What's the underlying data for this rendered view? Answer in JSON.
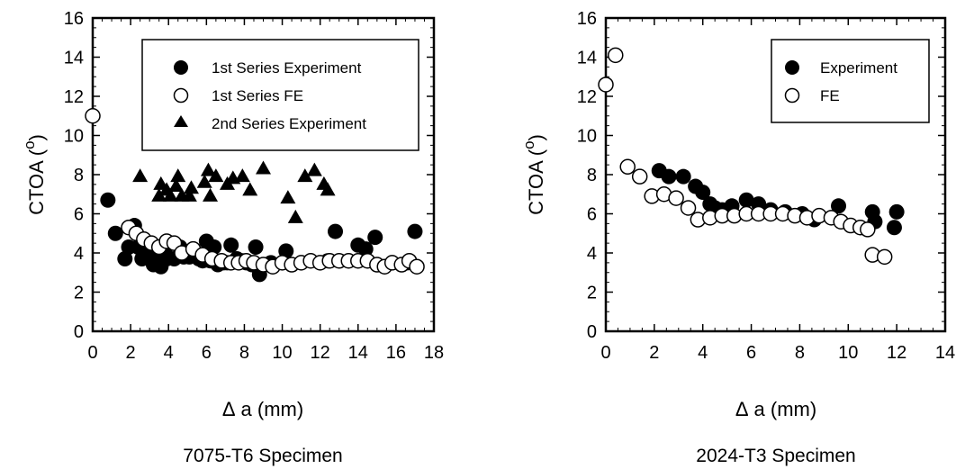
{
  "chart_data": [
    {
      "type": "scatter",
      "caption": "7075-T6 Specimen",
      "xlabel_symbol": "Δ",
      "xlabel": "a (mm)",
      "ylabel": "CTOA (",
      "ylabel_unit": "o",
      "ylabel_close": ")",
      "xlim": [
        0,
        18
      ],
      "ylim": [
        0,
        16
      ],
      "xticks": [
        0,
        2,
        4,
        6,
        8,
        10,
        12,
        14,
        16,
        18
      ],
      "yticks": [
        0,
        2,
        4,
        6,
        8,
        10,
        12,
        14,
        16
      ],
      "legend_position": "top-right",
      "series": [
        {
          "name": "1st Series Experiment",
          "marker": "filled-circle",
          "points": [
            [
              0.8,
              6.7
            ],
            [
              1.2,
              5.0
            ],
            [
              1.7,
              3.7
            ],
            [
              1.9,
              4.3
            ],
            [
              2.2,
              5.4
            ],
            [
              2.4,
              4.3
            ],
            [
              2.6,
              3.7
            ],
            [
              2.9,
              3.9
            ],
            [
              3.1,
              4.2
            ],
            [
              3.2,
              3.4
            ],
            [
              3.4,
              3.6
            ],
            [
              3.6,
              3.3
            ],
            [
              3.8,
              4.1
            ],
            [
              3.9,
              3.7
            ],
            [
              4.1,
              4.5
            ],
            [
              4.3,
              3.7
            ],
            [
              4.6,
              4.3
            ],
            [
              4.8,
              3.8
            ],
            [
              5.1,
              3.8
            ],
            [
              5.3,
              4.0
            ],
            [
              5.6,
              3.7
            ],
            [
              5.8,
              3.6
            ],
            [
              6.0,
              4.6
            ],
            [
              6.2,
              3.6
            ],
            [
              6.4,
              4.3
            ],
            [
              6.6,
              3.4
            ],
            [
              6.9,
              3.5
            ],
            [
              7.1,
              3.5
            ],
            [
              7.3,
              4.4
            ],
            [
              7.6,
              3.7
            ],
            [
              7.9,
              3.6
            ],
            [
              8.1,
              3.5
            ],
            [
              8.4,
              3.4
            ],
            [
              8.6,
              4.3
            ],
            [
              8.8,
              2.9
            ],
            [
              9.0,
              3.4
            ],
            [
              9.4,
              3.5
            ],
            [
              10.2,
              4.1
            ],
            [
              12.4,
              3.6
            ],
            [
              12.8,
              5.1
            ],
            [
              14.0,
              4.4
            ],
            [
              14.4,
              4.2
            ],
            [
              14.9,
              4.8
            ],
            [
              15.8,
              3.5
            ],
            [
              16.6,
              3.5
            ],
            [
              17.0,
              5.1
            ]
          ]
        },
        {
          "name": "1st Series FE",
          "marker": "open-circle",
          "points": [
            [
              0.0,
              11.0
            ],
            [
              1.9,
              5.3
            ],
            [
              2.3,
              5.0
            ],
            [
              2.7,
              4.7
            ],
            [
              3.1,
              4.5
            ],
            [
              3.5,
              4.3
            ],
            [
              3.9,
              4.6
            ],
            [
              4.3,
              4.5
            ],
            [
              4.7,
              4.0
            ],
            [
              5.3,
              4.2
            ],
            [
              5.8,
              3.9
            ],
            [
              6.3,
              3.7
            ],
            [
              6.8,
              3.6
            ],
            [
              7.3,
              3.5
            ],
            [
              7.7,
              3.5
            ],
            [
              8.1,
              3.6
            ],
            [
              8.5,
              3.5
            ],
            [
              9.0,
              3.4
            ],
            [
              9.5,
              3.3
            ],
            [
              10.0,
              3.5
            ],
            [
              10.5,
              3.4
            ],
            [
              11.0,
              3.5
            ],
            [
              11.5,
              3.6
            ],
            [
              12.0,
              3.5
            ],
            [
              12.5,
              3.6
            ],
            [
              13.0,
              3.6
            ],
            [
              13.5,
              3.6
            ],
            [
              14.0,
              3.6
            ],
            [
              14.5,
              3.6
            ],
            [
              15.0,
              3.4
            ],
            [
              15.4,
              3.3
            ],
            [
              15.8,
              3.5
            ],
            [
              16.3,
              3.4
            ],
            [
              16.7,
              3.6
            ],
            [
              17.1,
              3.3
            ]
          ]
        },
        {
          "name": "2nd Series Experiment",
          "marker": "filled-triangle",
          "points": [
            [
              2.5,
              7.9
            ],
            [
              3.5,
              6.9
            ],
            [
              3.6,
              7.5
            ],
            [
              3.9,
              7.2
            ],
            [
              4.1,
              6.9
            ],
            [
              4.4,
              7.4
            ],
            [
              4.5,
              7.9
            ],
            [
              4.7,
              6.9
            ],
            [
              5.1,
              6.9
            ],
            [
              5.2,
              7.3
            ],
            [
              5.9,
              7.6
            ],
            [
              6.1,
              8.2
            ],
            [
              6.2,
              6.9
            ],
            [
              6.5,
              7.9
            ],
            [
              7.1,
              7.5
            ],
            [
              7.4,
              7.8
            ],
            [
              7.9,
              7.9
            ],
            [
              8.3,
              7.2
            ],
            [
              9.0,
              8.3
            ],
            [
              10.3,
              6.8
            ],
            [
              10.7,
              5.8
            ],
            [
              11.2,
              7.9
            ],
            [
              11.7,
              8.2
            ],
            [
              12.2,
              7.5
            ],
            [
              12.4,
              7.2
            ]
          ]
        }
      ]
    },
    {
      "type": "scatter",
      "caption": "2024-T3 Specimen",
      "xlabel_symbol": "Δ",
      "xlabel": "a (mm)",
      "ylabel": "CTOA (",
      "ylabel_unit": "o",
      "ylabel_close": ")",
      "xlim": [
        0,
        14
      ],
      "ylim": [
        0,
        16
      ],
      "xticks": [
        0,
        2,
        4,
        6,
        8,
        10,
        12,
        14
      ],
      "yticks": [
        0,
        2,
        4,
        6,
        8,
        10,
        12,
        14,
        16
      ],
      "legend_position": "top-right",
      "series": [
        {
          "name": "Experiment",
          "marker": "filled-circle",
          "points": [
            [
              2.2,
              8.2
            ],
            [
              2.6,
              7.9
            ],
            [
              3.2,
              7.9
            ],
            [
              3.7,
              7.4
            ],
            [
              4.0,
              7.1
            ],
            [
              4.3,
              6.5
            ],
            [
              4.5,
              6.3
            ],
            [
              4.8,
              6.2
            ],
            [
              5.2,
              6.4
            ],
            [
              5.8,
              6.7
            ],
            [
              6.3,
              6.5
            ],
            [
              6.8,
              6.2
            ],
            [
              7.4,
              6.1
            ],
            [
              8.1,
              6.0
            ],
            [
              8.6,
              5.7
            ],
            [
              9.6,
              6.4
            ],
            [
              11.0,
              6.1
            ],
            [
              11.1,
              5.6
            ],
            [
              11.9,
              5.3
            ],
            [
              12.0,
              6.1
            ]
          ]
        },
        {
          "name": "FE",
          "marker": "open-circle",
          "points": [
            [
              0.0,
              12.6
            ],
            [
              0.4,
              14.1
            ],
            [
              0.9,
              8.4
            ],
            [
              1.4,
              7.9
            ],
            [
              1.9,
              6.9
            ],
            [
              2.4,
              7.0
            ],
            [
              2.9,
              6.8
            ],
            [
              3.4,
              6.3
            ],
            [
              3.8,
              5.7
            ],
            [
              4.3,
              5.8
            ],
            [
              4.8,
              5.9
            ],
            [
              5.3,
              5.9
            ],
            [
              5.8,
              6.0
            ],
            [
              6.3,
              6.0
            ],
            [
              6.8,
              6.0
            ],
            [
              7.3,
              6.0
            ],
            [
              7.8,
              5.9
            ],
            [
              8.3,
              5.8
            ],
            [
              8.8,
              5.9
            ],
            [
              9.3,
              5.8
            ],
            [
              9.7,
              5.6
            ],
            [
              10.1,
              5.4
            ],
            [
              10.5,
              5.3
            ],
            [
              10.8,
              5.2
            ],
            [
              11.0,
              3.9
            ],
            [
              11.5,
              3.8
            ]
          ]
        }
      ]
    }
  ]
}
